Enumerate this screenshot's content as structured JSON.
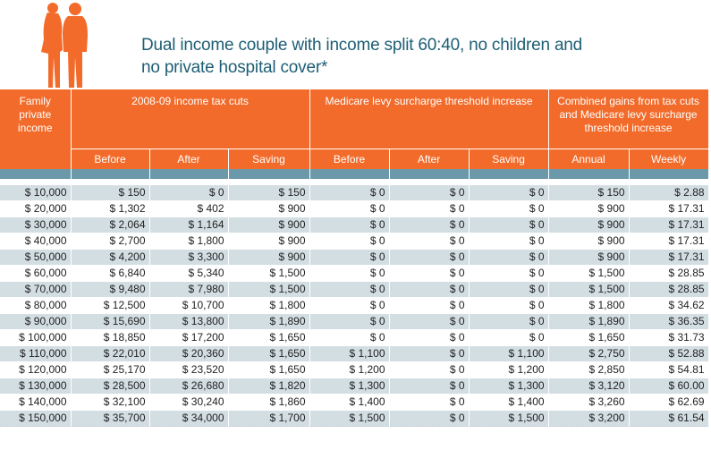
{
  "title_line1": "Dual income couple with income split 60:40, no children and",
  "title_line2": "no private hospital cover*",
  "colors": {
    "orange": "#f26b2a",
    "band": "#6c99aa",
    "row_alt": "#d3dee3",
    "title": "#1d5e74"
  },
  "headers": {
    "family": "Family private income",
    "tax_group": "2008-09 income tax cuts",
    "medicare_group": "Medicare levy surcharge threshold increase",
    "combined_group": "Combined gains from tax cuts and Medicare levy surcharge threshold increase",
    "sub": [
      "Before",
      "After",
      "Saving",
      "Before",
      "After",
      "Saving",
      "Annual",
      "Weekly"
    ]
  },
  "rows": [
    [
      "$ 10,000",
      "$ 150",
      "$ 0",
      "$ 150",
      "$ 0",
      "$ 0",
      "$ 0",
      "$ 150",
      "$ 2.88"
    ],
    [
      "$ 20,000",
      "$ 1,302",
      "$ 402",
      "$ 900",
      "$ 0",
      "$ 0",
      "$ 0",
      "$ 900",
      "$ 17.31"
    ],
    [
      "$ 30,000",
      "$ 2,064",
      "$ 1,164",
      "$ 900",
      "$ 0",
      "$ 0",
      "$ 0",
      "$ 900",
      "$ 17.31"
    ],
    [
      "$ 40,000",
      "$ 2,700",
      "$ 1,800",
      "$ 900",
      "$ 0",
      "$ 0",
      "$ 0",
      "$ 900",
      "$ 17.31"
    ],
    [
      "$ 50,000",
      "$ 4,200",
      "$ 3,300",
      "$ 900",
      "$ 0",
      "$ 0",
      "$ 0",
      "$ 900",
      "$ 17.31"
    ],
    [
      "$ 60,000",
      "$ 6,840",
      "$ 5,340",
      "$ 1,500",
      "$ 0",
      "$ 0",
      "$ 0",
      "$ 1,500",
      "$ 28.85"
    ],
    [
      "$ 70,000",
      "$ 9,480",
      "$ 7,980",
      "$ 1,500",
      "$ 0",
      "$ 0",
      "$ 0",
      "$ 1,500",
      "$ 28.85"
    ],
    [
      "$ 80,000",
      "$ 12,500",
      "$ 10,700",
      "$ 1,800",
      "$ 0",
      "$ 0",
      "$ 0",
      "$ 1,800",
      "$ 34.62"
    ],
    [
      "$ 90,000",
      "$ 15,690",
      "$ 13,800",
      "$ 1,890",
      "$ 0",
      "$ 0",
      "$ 0",
      "$ 1,890",
      "$ 36.35"
    ],
    [
      "$ 100,000",
      "$ 18,850",
      "$ 17,200",
      "$ 1,650",
      "$ 0",
      "$ 0",
      "$ 0",
      "$ 1,650",
      "$ 31.73"
    ],
    [
      "$ 110,000",
      "$ 22,010",
      "$ 20,360",
      "$ 1,650",
      "$ 1,100",
      "$ 0",
      "$ 1,100",
      "$ 2,750",
      "$ 52.88"
    ],
    [
      "$ 120,000",
      "$ 25,170",
      "$ 23,520",
      "$ 1,650",
      "$ 1,200",
      "$ 0",
      "$ 1,200",
      "$ 2,850",
      "$ 54.81"
    ],
    [
      "$ 130,000",
      "$ 28,500",
      "$ 26,680",
      "$ 1,820",
      "$ 1,300",
      "$ 0",
      "$ 1,300",
      "$ 3,120",
      "$ 60.00"
    ],
    [
      "$ 140,000",
      "$ 32,100",
      "$ 30,240",
      "$ 1,860",
      "$ 1,400",
      "$ 0",
      "$ 1,400",
      "$ 3,260",
      "$ 62.69"
    ],
    [
      "$ 150,000",
      "$ 35,700",
      "$ 34,000",
      "$ 1,700",
      "$ 1,500",
      "$ 0",
      "$ 1,500",
      "$ 3,200",
      "$ 61.54"
    ]
  ]
}
